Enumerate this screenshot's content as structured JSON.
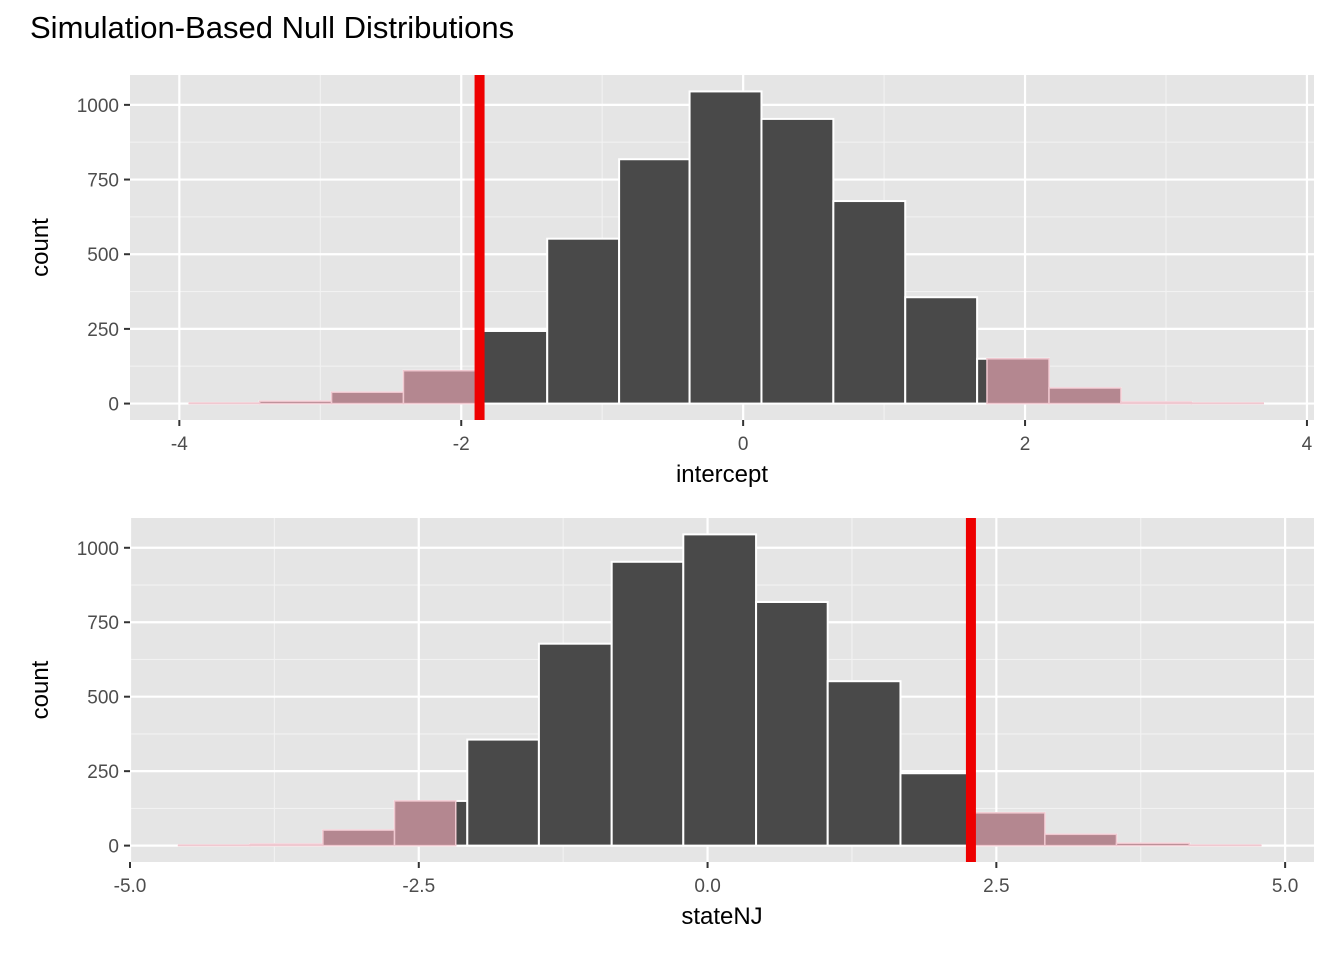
{
  "title": "Simulation-Based Null Distributions",
  "chart_data": [
    {
      "type": "bar",
      "xlabel": "intercept",
      "ylabel": "count",
      "xlim": [
        -4.35,
        4.05
      ],
      "ylim": [
        -55,
        1100
      ],
      "xticks": [
        -4,
        -2,
        0,
        2,
        4
      ],
      "xtick_labels": [
        "-4",
        "-2",
        "0",
        "2",
        "4"
      ],
      "yticks": [
        0,
        250,
        500,
        750,
        1000
      ],
      "ytick_labels": [
        "0",
        "250",
        "500",
        "750",
        "1000"
      ],
      "grid": true,
      "bins": [
        {
          "x0": -3.93,
          "x1": -3.43,
          "count": 2
        },
        {
          "x0": -3.43,
          "x1": -2.92,
          "count": 8
        },
        {
          "x0": -2.92,
          "x1": -2.41,
          "count": 38
        },
        {
          "x0": -2.41,
          "x1": -1.9,
          "count": 110
        },
        {
          "x0": -1.9,
          "x1": -1.39,
          "count": 243
        },
        {
          "x0": -1.39,
          "x1": -0.88,
          "count": 552
        },
        {
          "x0": -0.88,
          "x1": -0.38,
          "count": 818
        },
        {
          "x0": -0.38,
          "x1": 0.13,
          "count": 1045
        },
        {
          "x0": 0.13,
          "x1": 0.64,
          "count": 953
        },
        {
          "x0": 0.64,
          "x1": 1.15,
          "count": 678
        },
        {
          "x0": 1.15,
          "x1": 1.66,
          "count": 356
        },
        {
          "x0": 1.66,
          "x1": 2.17,
          "count": 150
        },
        {
          "x0": 2.17,
          "x1": 2.68,
          "count": 52
        },
        {
          "x0": 2.68,
          "x1": 3.18,
          "count": 5
        },
        {
          "x0": 3.18,
          "x1": 3.69,
          "count": 2
        }
      ],
      "observed_stat": -1.87,
      "shade": "two-sided",
      "shade_regions": [
        [
          -4.35,
          -1.87
        ],
        [
          1.73,
          4.05
        ]
      ],
      "colors": {
        "bar": "#494949",
        "shade": "#b48790",
        "line": "#ee0000",
        "panel": "#e5e5e5"
      }
    },
    {
      "type": "bar",
      "xlabel": "stateNJ",
      "ylabel": "count",
      "xlim": [
        -5.0,
        5.25
      ],
      "ylim": [
        -55,
        1100
      ],
      "xticks": [
        -5.0,
        -2.5,
        0.0,
        2.5,
        5.0
      ],
      "xtick_labels": [
        "-5.0",
        "-2.5",
        "0.0",
        "2.5",
        "5.0"
      ],
      "yticks": [
        0,
        250,
        500,
        750,
        1000
      ],
      "ytick_labels": [
        "0",
        "250",
        "500",
        "750",
        "1000"
      ],
      "grid": true,
      "bins": [
        {
          "x0": -4.58,
          "x1": -3.96,
          "count": 2
        },
        {
          "x0": -3.96,
          "x1": -3.33,
          "count": 5
        },
        {
          "x0": -3.33,
          "x1": -2.71,
          "count": 52
        },
        {
          "x0": -2.71,
          "x1": -2.08,
          "count": 150
        },
        {
          "x0": -2.08,
          "x1": -1.46,
          "count": 356
        },
        {
          "x0": -1.46,
          "x1": -0.83,
          "count": 678
        },
        {
          "x0": -0.83,
          "x1": -0.21,
          "count": 953
        },
        {
          "x0": -0.21,
          "x1": 0.42,
          "count": 1045
        },
        {
          "x0": 0.42,
          "x1": 1.04,
          "count": 818
        },
        {
          "x0": 1.04,
          "x1": 1.67,
          "count": 552
        },
        {
          "x0": 1.67,
          "x1": 2.29,
          "count": 243
        },
        {
          "x0": 2.29,
          "x1": 2.92,
          "count": 110
        },
        {
          "x0": 2.92,
          "x1": 3.54,
          "count": 38
        },
        {
          "x0": 3.54,
          "x1": 4.17,
          "count": 8
        },
        {
          "x0": 4.17,
          "x1": 4.79,
          "count": 2
        }
      ],
      "observed_stat": 2.28,
      "shade": "two-sided",
      "shade_regions": [
        [
          -5.0,
          -2.18
        ],
        [
          2.28,
          5.25
        ]
      ],
      "colors": {
        "bar": "#494949",
        "shade": "#b48790",
        "line": "#ee0000",
        "panel": "#e5e5e5"
      }
    }
  ]
}
